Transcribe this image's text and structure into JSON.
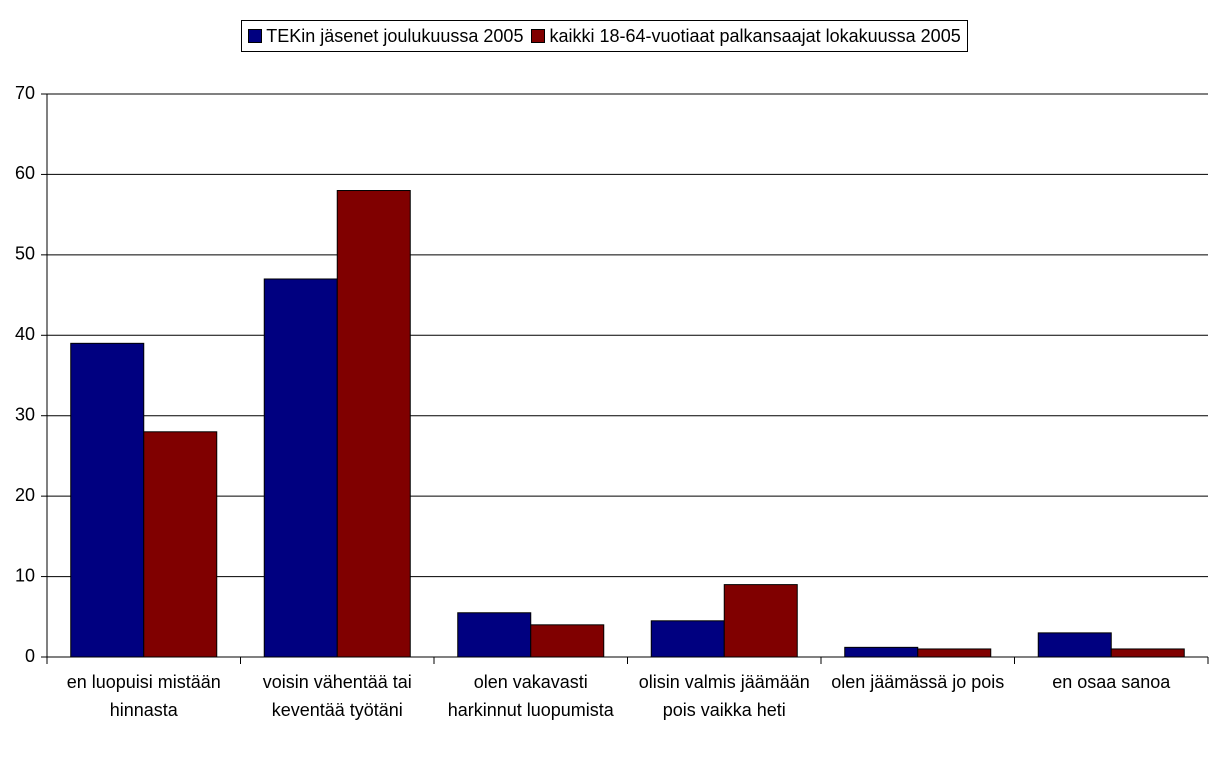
{
  "chart_data": {
    "type": "bar",
    "categories": [
      "en luopuisi mistään hinnasta",
      "voisin vähentää tai keventää työtäni",
      "olen vakavasti harkinnut luopumista",
      "olisin valmis jäämään pois vaikka heti",
      "olen jäämässä jo pois",
      "en osaa sanoa"
    ],
    "series": [
      {
        "name": "TEKin jäsenet joulukuussa 2005",
        "color": "#000080",
        "values": [
          39,
          47,
          5.5,
          4.5,
          1.2,
          3
        ]
      },
      {
        "name": "kaikki 18-64-vuotiaat palkansaajat lokakuussa 2005",
        "color": "#800000",
        "values": [
          28,
          58,
          4,
          9,
          1,
          1
        ]
      }
    ],
    "ylim": [
      0,
      70
    ],
    "yticks": [
      0,
      10,
      20,
      30,
      40,
      50,
      60,
      70
    ],
    "grid": true,
    "legend": "top"
  }
}
